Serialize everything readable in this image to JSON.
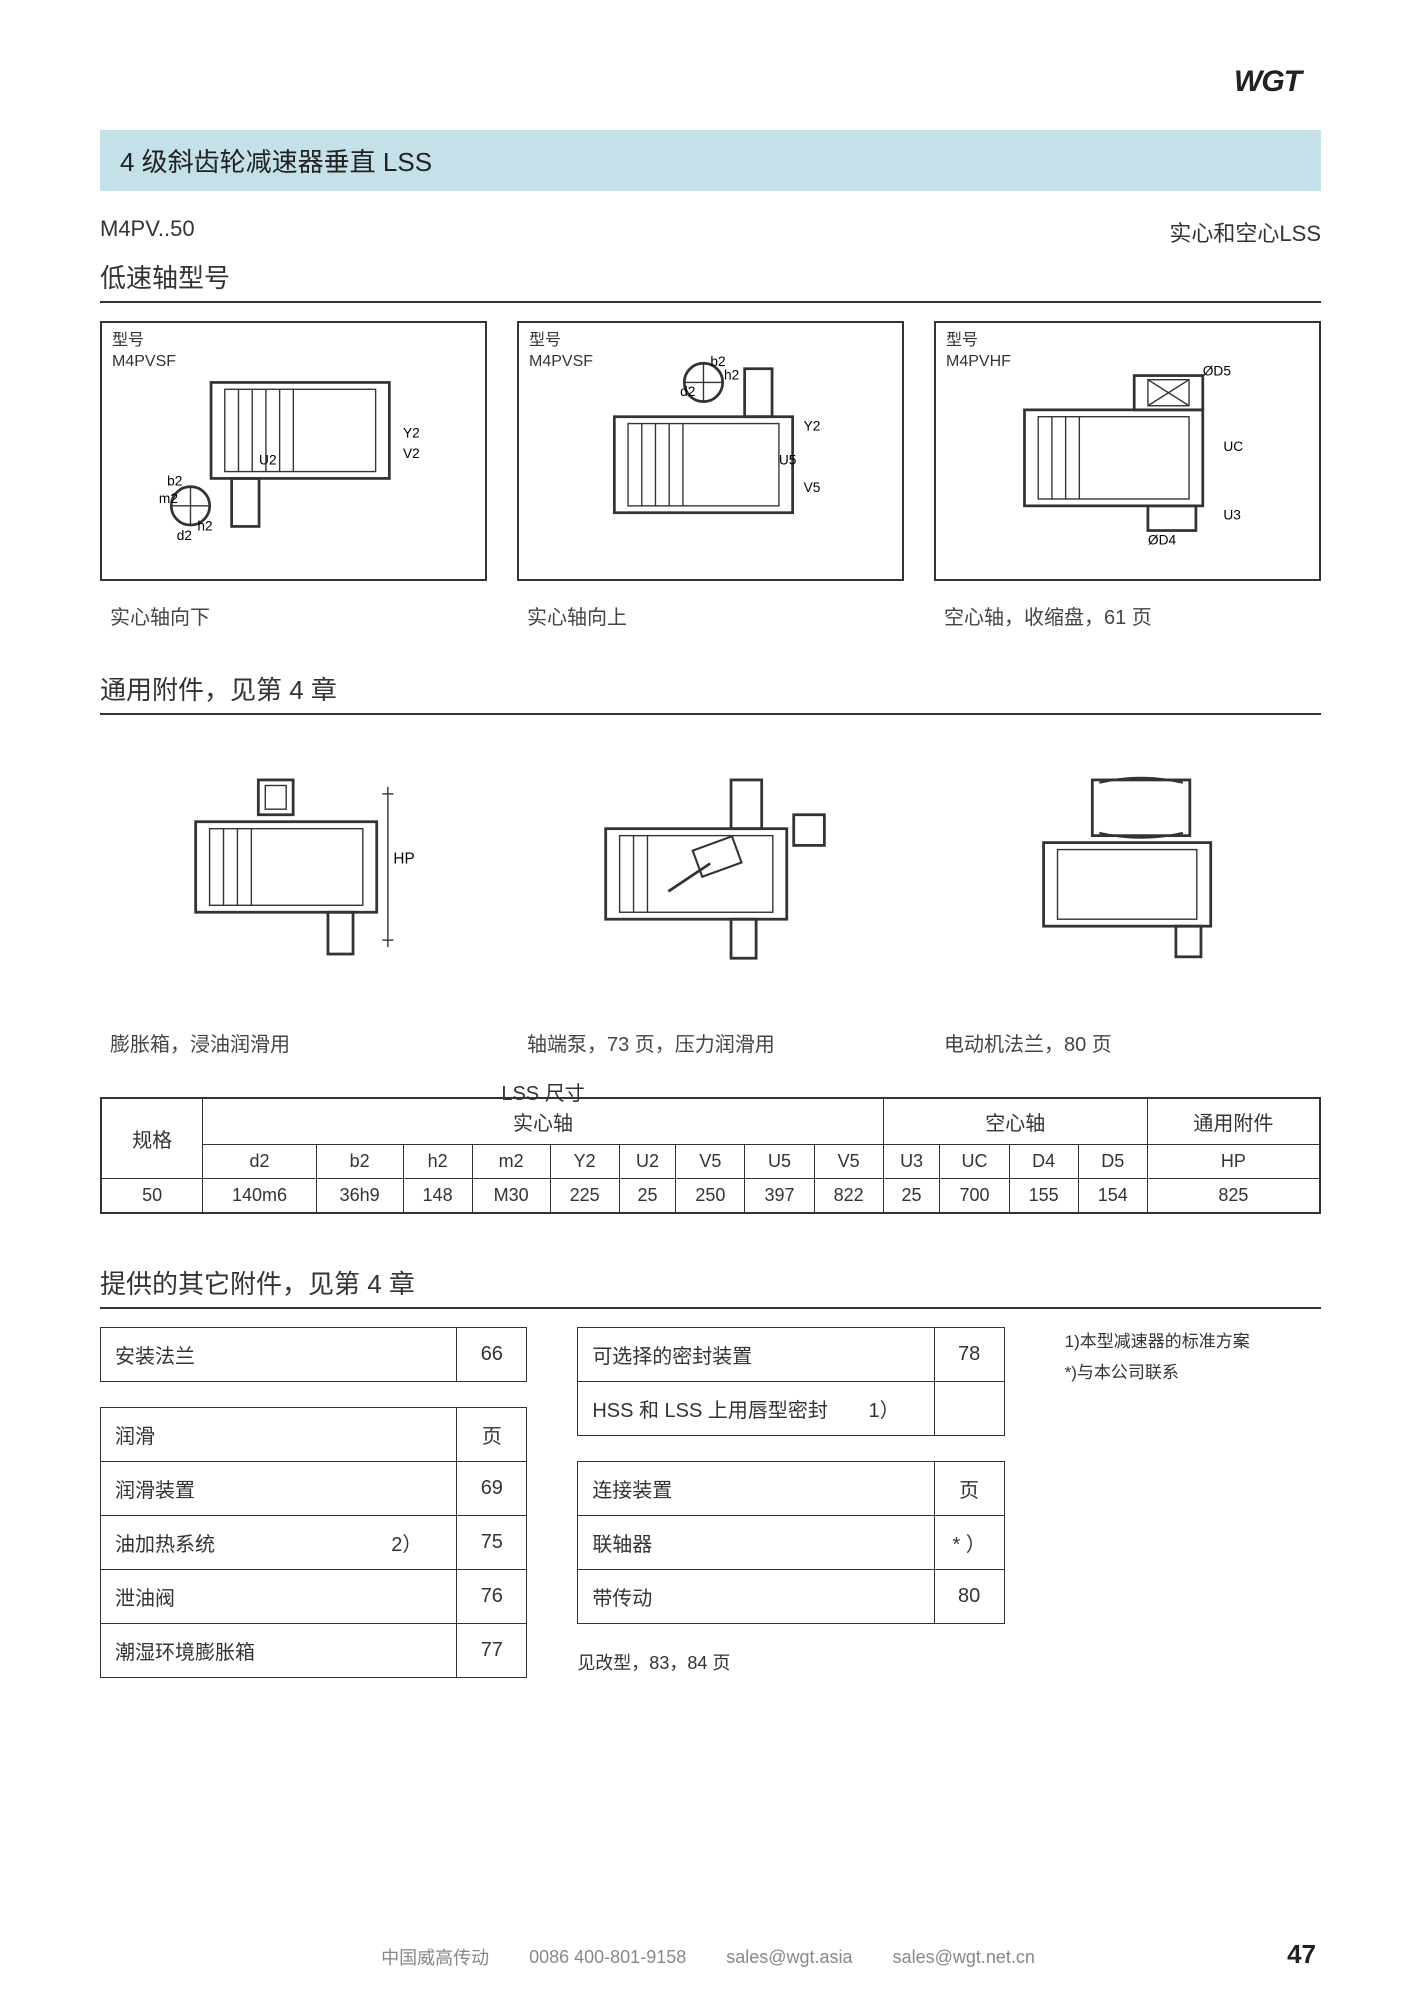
{
  "logo": "WGT",
  "title": "4 级斜齿轮减速器垂直 LSS",
  "model_code": "M4PV..50",
  "shaft_type": "实心和空心LSS",
  "section1_header": "低速轴型号",
  "diagrams1": [
    {
      "model_prefix": "型号",
      "model": "M4PVSF",
      "caption": "实心轴向下"
    },
    {
      "model_prefix": "型号",
      "model": "M4PVSF",
      "caption": "实心轴向上"
    },
    {
      "model_prefix": "型号",
      "model": "M4PVHF",
      "caption": "空心轴，收缩盘，61 页"
    }
  ],
  "section2_header": "通用附件，见第 4 章",
  "diagrams2": [
    {
      "caption": "膨胀箱，浸油润滑用"
    },
    {
      "caption": "轴端泵，73 页，压力润滑用"
    },
    {
      "caption": "电动机法兰，80 页"
    }
  ],
  "lss_table": {
    "top_label": "LSS 尺寸",
    "spec_label": "规格",
    "groups": [
      "实心轴",
      "空心轴",
      "通用附件"
    ],
    "columns": [
      "d2",
      "b2",
      "h2",
      "m2",
      "Y2",
      "U2",
      "V5",
      "U5",
      "V5",
      "U3",
      "UC",
      "D4",
      "D5",
      "HP"
    ],
    "row_spec": "50",
    "row_values": [
      "140m6",
      "36h9",
      "148",
      "M30",
      "225",
      "25",
      "250",
      "397",
      "822",
      "25",
      "700",
      "155",
      "154",
      "825"
    ]
  },
  "section3_header": "提供的其它附件，见第 4 章",
  "acc_tables": {
    "left": [
      {
        "title": "安装法兰",
        "page": "66",
        "rows": []
      },
      {
        "title": "润滑",
        "page": "页",
        "rows": [
          {
            "label": "润滑装置",
            "note": "",
            "page": "69"
          },
          {
            "label": "油加热系统",
            "note": "2）",
            "page": "75"
          },
          {
            "label": "泄油阀",
            "note": "",
            "page": "76"
          },
          {
            "label": "潮湿环境膨胀箱",
            "note": "",
            "page": "77"
          }
        ]
      }
    ],
    "right": [
      {
        "title": "可选择的密封装置",
        "page": "78",
        "rows": [
          {
            "label": "HSS 和 LSS 上用唇型密封",
            "note": "1）",
            "page": ""
          }
        ]
      },
      {
        "title": "连接装置",
        "page": "页",
        "rows": [
          {
            "label": "联轴器",
            "note": "",
            "page": "* ）"
          },
          {
            "label": "带传动",
            "note": "",
            "page": "80"
          }
        ]
      }
    ],
    "right_footer": "见改型，83，84 页"
  },
  "notes": [
    "1)本型减速器的标准方案",
    "*)与本公司联系"
  ],
  "footer": {
    "company": "中国威高传动",
    "phone": "0086   400-801-9158",
    "email1": "sales@wgt.asia",
    "email2": "sales@wgt.net.cn",
    "page": "47"
  },
  "colors": {
    "title_bg": "#c4e0e8",
    "border": "#333333",
    "text": "#333333",
    "footer_text": "#888888"
  }
}
